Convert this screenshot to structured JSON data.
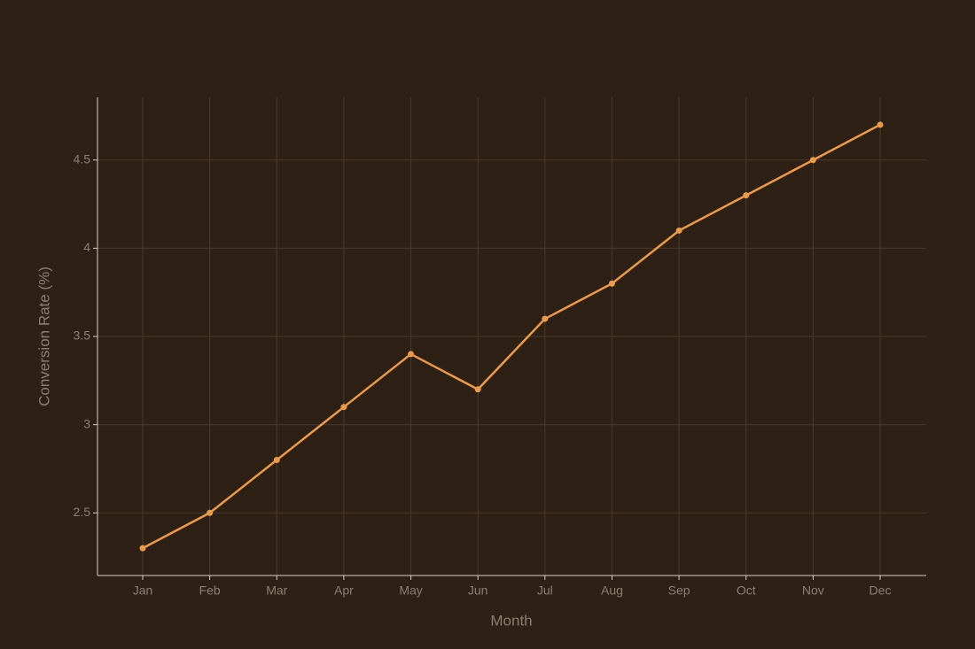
{
  "chart_data": {
    "type": "line",
    "x_label": "Month",
    "y_label": "Conversion Rate (%)",
    "categories": [
      "Jan",
      "Feb",
      "Mar",
      "Apr",
      "May",
      "Jun",
      "Jul",
      "Aug",
      "Sep",
      "Oct",
      "Nov",
      "Dec"
    ],
    "values": [
      2.3,
      2.5,
      2.8,
      3.1,
      3.4,
      3.2,
      3.6,
      3.8,
      4.1,
      4.3,
      4.5,
      4.7
    ],
    "color": "#e89a4f",
    "ylim": [
      2.145,
      4.855
    ],
    "yticks": [
      2.5,
      3,
      3.5,
      4,
      4.5
    ],
    "grid": true
  }
}
